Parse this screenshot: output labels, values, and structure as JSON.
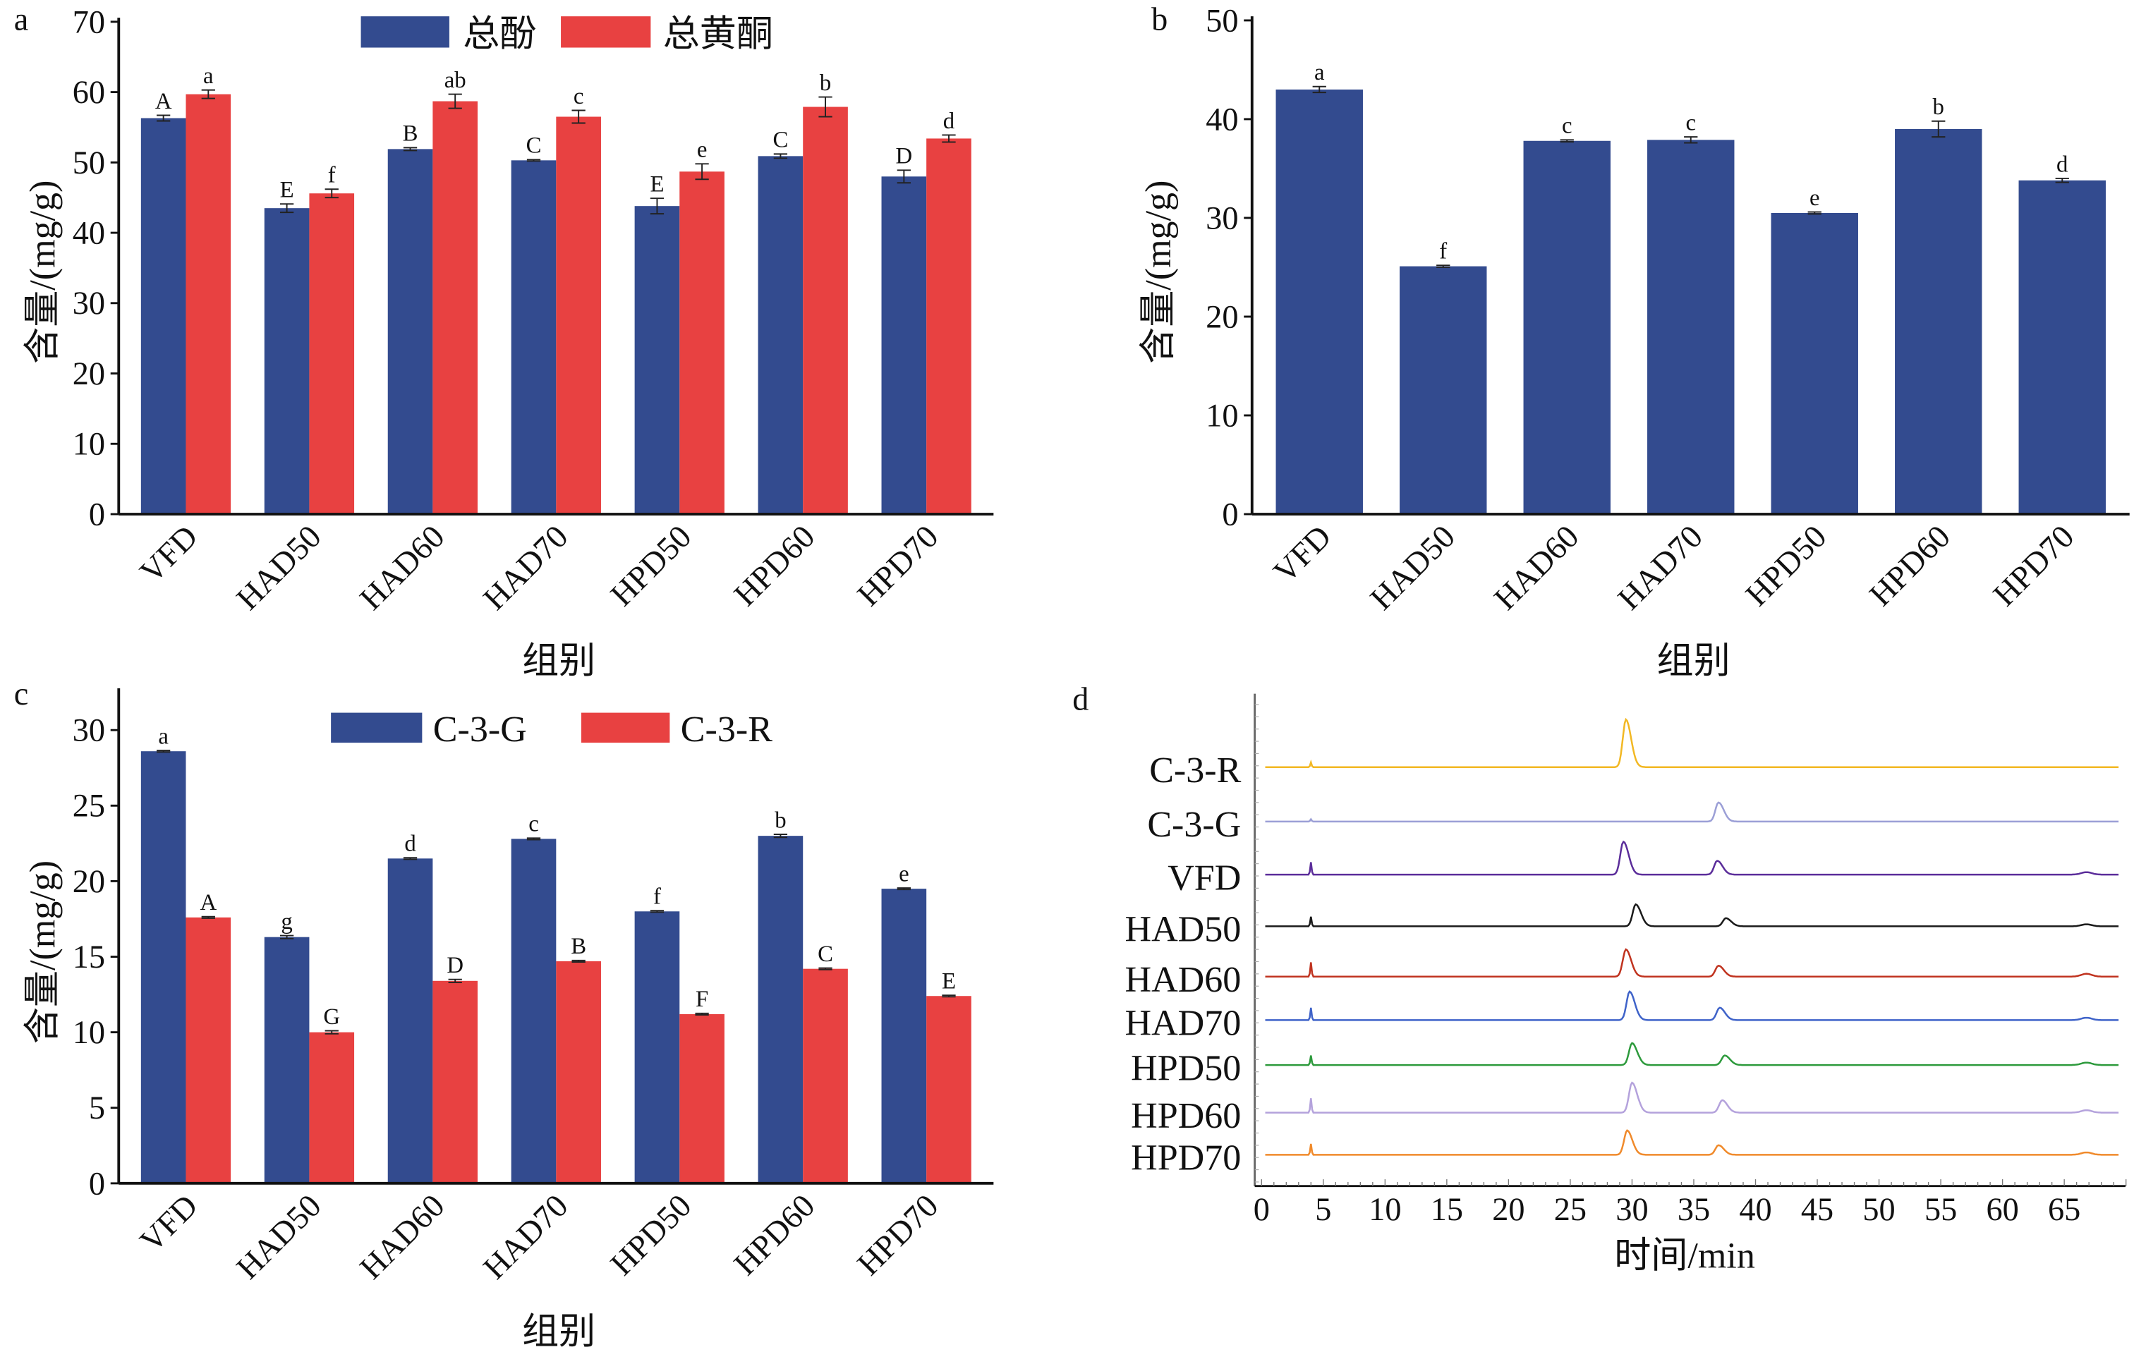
{
  "colors": {
    "blue": "#334b8f",
    "red": "#e84141",
    "axis": "#111111"
  },
  "chart_data": [
    {
      "panel": "a",
      "type": "bar",
      "categories": [
        "VFD",
        "HAD50",
        "HAD60",
        "HAD70",
        "HPD50",
        "HPD60",
        "HPD70"
      ],
      "series": [
        {
          "name": "总酚",
          "color": "#334b8f",
          "values": [
            56.3,
            43.5,
            51.9,
            50.3,
            43.8,
            50.9,
            48.0
          ],
          "errors": [
            0.4,
            0.6,
            0.2,
            0.1,
            1.1,
            0.3,
            0.9
          ],
          "letters": [
            "A",
            "E",
            "B",
            "C",
            "E",
            "C",
            "D"
          ]
        },
        {
          "name": "总黄酮",
          "color": "#e84141",
          "values": [
            59.7,
            45.6,
            58.7,
            56.5,
            48.7,
            57.9,
            53.4
          ],
          "errors": [
            0.6,
            0.6,
            1.0,
            0.9,
            1.1,
            1.4,
            0.5
          ],
          "letters": [
            "a",
            "f",
            "ab",
            "c",
            "e",
            "b",
            "d"
          ]
        }
      ],
      "xlabel": "组别",
      "ylabel": "含量/(mg/g)",
      "ylim": [
        0,
        70
      ],
      "yticks": [
        0,
        10,
        20,
        30,
        40,
        50,
        60,
        70
      ],
      "legend": "top-center",
      "grid": false
    },
    {
      "panel": "b",
      "type": "bar",
      "categories": [
        "VFD",
        "HAD50",
        "HAD60",
        "HAD70",
        "HPD50",
        "HPD60",
        "HPD70"
      ],
      "series": [
        {
          "color": "#334b8f",
          "values": [
            43.0,
            25.1,
            37.8,
            37.9,
            30.5,
            39.0,
            33.8
          ],
          "errors": [
            0.3,
            0.1,
            0.1,
            0.3,
            0.1,
            0.8,
            0.2
          ],
          "letters": [
            "a",
            "f",
            "c",
            "c",
            "e",
            "b",
            "d"
          ]
        }
      ],
      "xlabel": "组别",
      "ylabel": "含量/(mg/g)",
      "ylim": [
        0,
        50
      ],
      "yticks": [
        0,
        10,
        20,
        30,
        40,
        50
      ],
      "grid": false
    },
    {
      "panel": "c",
      "type": "bar",
      "categories": [
        "VFD",
        "HAD50",
        "HAD60",
        "HAD70",
        "HPD50",
        "HPD60",
        "HPD70"
      ],
      "series": [
        {
          "name": "C-3-G",
          "color": "#334b8f",
          "values": [
            28.6,
            16.3,
            21.5,
            22.8,
            18.0,
            23.0,
            19.5
          ],
          "errors": [
            0.05,
            0.1,
            0.05,
            0.05,
            0.05,
            0.1,
            0.05
          ],
          "letters": [
            "a",
            "g",
            "d",
            "c",
            "f",
            "b",
            "e"
          ]
        },
        {
          "name": "C-3-R",
          "color": "#e84141",
          "values": [
            17.6,
            10.0,
            13.4,
            14.7,
            11.2,
            14.2,
            12.4
          ],
          "errors": [
            0.05,
            0.1,
            0.1,
            0.05,
            0.05,
            0.05,
            0.05
          ],
          "letters": [
            "A",
            "G",
            "D",
            "B",
            "F",
            "C",
            "E"
          ]
        }
      ],
      "xlabel": "组别",
      "ylabel": "含量/(mg/g)",
      "ylim": [
        0,
        32.5
      ],
      "yticks": [
        0,
        5,
        10,
        15,
        20,
        25,
        30
      ],
      "legend": "top-center",
      "grid": false
    },
    {
      "panel": "d",
      "type": "line",
      "xlabel": "时间/min",
      "xlim": [
        0,
        70
      ],
      "xticks": [
        0,
        5,
        10,
        15,
        20,
        25,
        30,
        35,
        40,
        45,
        50,
        55,
        60,
        65
      ],
      "grid": false,
      "traces": [
        {
          "name": "C-3-R",
          "color": "#f2b824",
          "peaks": [
            {
              "t": 29.5,
              "h": 1.0
            }
          ],
          "spike": 0.1,
          "tail": 0
        },
        {
          "name": "C-3-G",
          "color": "#9b9fd6",
          "peaks": [
            {
              "t": 37.0,
              "h": 0.4
            }
          ],
          "spike": 0.05,
          "tail": 0
        },
        {
          "name": "VFD",
          "color": "#5b2d9a",
          "peaks": [
            {
              "t": 29.3,
              "h": 0.69
            },
            {
              "t": 36.9,
              "h": 0.29
            }
          ],
          "spike": 0.26,
          "tail": 0.05
        },
        {
          "name": "HAD50",
          "color": "#1a1a1a",
          "peaks": [
            {
              "t": 30.3,
              "h": 0.46
            },
            {
              "t": 37.6,
              "h": 0.17
            }
          ],
          "spike": 0.2,
          "tail": 0.04
        },
        {
          "name": "HAD60",
          "color": "#c0331f",
          "peaks": [
            {
              "t": 29.5,
              "h": 0.57
            },
            {
              "t": 37.0,
              "h": 0.23
            }
          ],
          "spike": 0.3,
          "tail": 0.06
        },
        {
          "name": "HAD70",
          "color": "#3f63c9",
          "peaks": [
            {
              "t": 29.8,
              "h": 0.6
            },
            {
              "t": 37.1,
              "h": 0.26
            }
          ],
          "spike": 0.26,
          "tail": 0.05
        },
        {
          "name": "HPD50",
          "color": "#2d9a3c",
          "peaks": [
            {
              "t": 30.0,
              "h": 0.46
            },
            {
              "t": 37.5,
              "h": 0.2
            }
          ],
          "spike": 0.2,
          "tail": 0.05
        },
        {
          "name": "HPD60",
          "color": "#b4a2dc",
          "peaks": [
            {
              "t": 30.0,
              "h": 0.63
            },
            {
              "t": 37.3,
              "h": 0.26
            }
          ],
          "spike": 0.3,
          "tail": 0.05
        },
        {
          "name": "HPD70",
          "color": "#f08a2b",
          "peaks": [
            {
              "t": 29.6,
              "h": 0.51
            },
            {
              "t": 37.0,
              "h": 0.2
            }
          ],
          "spike": 0.23,
          "tail": 0.05
        }
      ]
    }
  ]
}
